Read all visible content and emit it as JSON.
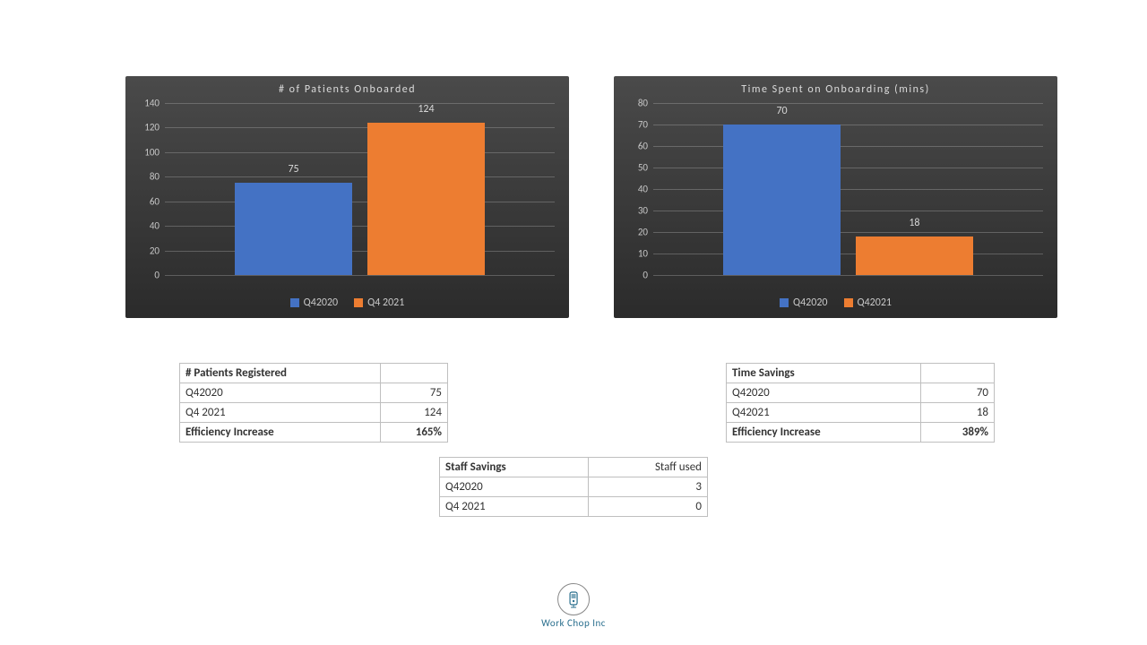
{
  "chart1": {
    "type": "bar",
    "title": "#  of  Patients  Onboarded",
    "categories": [
      "Q42020",
      "Q4 2021"
    ],
    "values": [
      75,
      124
    ],
    "bar_colors": [
      "#4472c4",
      "#ed7d31"
    ],
    "ylim": [
      0,
      140
    ],
    "ytick_step": 20,
    "background": "#3a3a3a",
    "grid_color": "rgba(180,180,180,0.35)",
    "tick_color": "#c8c8c8",
    "title_color": "#dcdcdc",
    "label_color": "#d8d8d8",
    "bar_width_pct": 30,
    "bar_positions_pct": [
      18,
      52
    ]
  },
  "chart2": {
    "type": "bar",
    "title": "Time  Spent  on  Onboarding   (mins)",
    "categories": [
      "Q42020",
      "Q42021"
    ],
    "values": [
      70,
      18
    ],
    "bar_colors": [
      "#4472c4",
      "#ed7d31"
    ],
    "ylim": [
      0,
      80
    ],
    "ytick_step": 10,
    "background": "#3a3a3a",
    "grid_color": "rgba(180,180,180,0.35)",
    "tick_color": "#c8c8c8",
    "title_color": "#dcdcdc",
    "label_color": "#d8d8d8",
    "bar_width_pct": 30,
    "bar_positions_pct": [
      18,
      52
    ]
  },
  "table1": {
    "header": "# Patients Registered",
    "rows": [
      {
        "label": "Q42020",
        "value": "75"
      },
      {
        "label": "Q4 2021",
        "value": "124"
      }
    ],
    "footer_label": "Efficiency Increase",
    "footer_value": "165%"
  },
  "table2": {
    "header": "Time Savings",
    "rows": [
      {
        "label": "Q42020",
        "value": "70"
      },
      {
        "label": "Q42021",
        "value": "18"
      }
    ],
    "footer_label": "Efficiency Increase",
    "footer_value": "389%"
  },
  "table3": {
    "header_left": "Staff Savings",
    "header_right": "Staff used",
    "rows": [
      {
        "label": "Q42020",
        "value": "3"
      },
      {
        "label": "Q4 2021",
        "value": "0"
      }
    ]
  },
  "logo": {
    "text": "Work Chop Inc",
    "color": "#2a6f8e"
  }
}
